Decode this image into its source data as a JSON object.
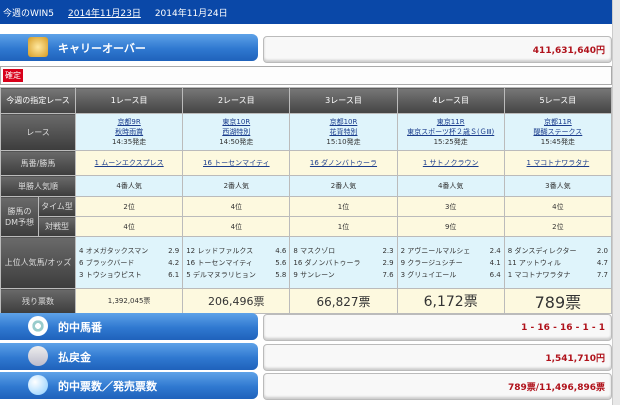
{
  "header": {
    "title": "今週のWIN5",
    "dates": [
      "2014年11月23日",
      "2014年11月24日"
    ]
  },
  "carryover": {
    "label": "キャリーオーバー",
    "value": "411,631,640円",
    "icon": "crown-icon"
  },
  "status_badge": "確定",
  "table": {
    "corner": "今週の指定レース",
    "columns": [
      "1レース目",
      "2レース目",
      "3レース目",
      "4レース目",
      "5レース目"
    ],
    "row_labels": {
      "race": "レース",
      "horse": "馬番/勝馬",
      "popularity": "単勝人気順",
      "dm_group": "勝馬のDM予想",
      "dm_time": "タイム型",
      "dm_match": "対戦型",
      "top": "上位人気馬/オッズ",
      "remaining": "残り票数"
    },
    "races": [
      {
        "venue": "京都9R",
        "name": "秋時雨賞",
        "start": "14:35発走",
        "winner": "1 ムーンエクスプレス",
        "pop": "4番人気",
        "time": "2位",
        "match": "4位",
        "top": [
          [
            "4",
            "オメガタックスマン",
            "2.9"
          ],
          [
            "6",
            "ブラックバード",
            "4.2"
          ],
          [
            "3",
            "トウショウピスト",
            "6.1"
          ]
        ],
        "remaining": "1,392,045票"
      },
      {
        "venue": "東京10R",
        "name": "西湖特別",
        "start": "14:50発走",
        "winner": "16 トーセンマイティ",
        "pop": "2番人気",
        "time": "4位",
        "match": "4位",
        "top": [
          [
            "12",
            "レッドファルクス",
            "4.6"
          ],
          [
            "16",
            "トーセンマイティ",
            "5.6"
          ],
          [
            "5",
            "デルマヌラリヒョン",
            "5.8"
          ]
        ],
        "remaining": "206,496票"
      },
      {
        "venue": "京都10R",
        "name": "花背特別",
        "start": "15:10発走",
        "winner": "16 ダノンバトゥーラ",
        "pop": "2番人気",
        "time": "1位",
        "match": "1位",
        "top": [
          [
            "8",
            "マスクゾロ",
            "2.3"
          ],
          [
            "16",
            "ダノンバトゥーラ",
            "2.9"
          ],
          [
            "9",
            "サンレーン",
            "7.6"
          ]
        ],
        "remaining": "66,827票"
      },
      {
        "venue": "東京11R",
        "name": "東京スポーツ杯２歳Ｓ(ＧⅢ)",
        "start": "15:25発走",
        "winner": "1 サトノクラウン",
        "pop": "4番人気",
        "time": "3位",
        "match": "9位",
        "top": [
          [
            "2",
            "アヴニールマルシェ",
            "2.4"
          ],
          [
            "9",
            "クラージュシチー",
            "4.1"
          ],
          [
            "3",
            "グリュイエール",
            "6.4"
          ]
        ],
        "remaining": "6,172票"
      },
      {
        "venue": "京都11R",
        "name": "醍醐ステークス",
        "start": "15:45発走",
        "winner": "1 マコトナワラタナ",
        "pop": "3番人気",
        "time": "4位",
        "match": "2位",
        "top": [
          [
            "8",
            "ダンスディレクター",
            "2.0"
          ],
          [
            "11",
            "アットウィル",
            "4.7"
          ],
          [
            "1",
            "マコトナワラタナ",
            "7.7"
          ]
        ],
        "remaining": "789票"
      }
    ]
  },
  "results": [
    {
      "label": "的中馬番",
      "value": "1 - 16 - 16 - 1 - 1",
      "icon": "target-icon"
    },
    {
      "label": "払戻金",
      "value": "1,541,710円",
      "icon": "coins-icon"
    },
    {
      "label": "的中票数／発売票数",
      "value": "789票/11,496,896票",
      "icon": "orb-icon"
    }
  ],
  "colors": {
    "header": "#0a48a8",
    "accent_red": "#b0121b",
    "bar_blue": "#2f78d0"
  }
}
